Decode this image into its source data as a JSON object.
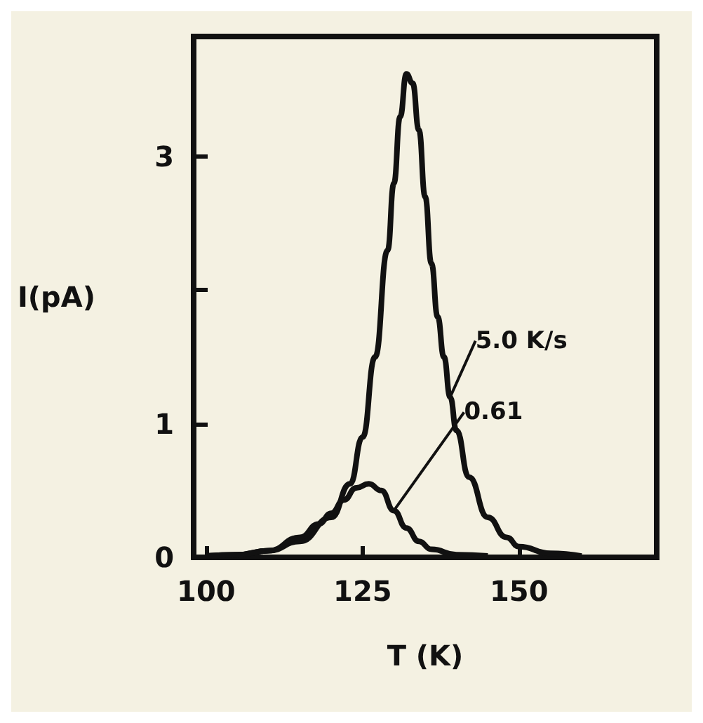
{
  "chart_data": {
    "type": "line",
    "xlabel": "T (K)",
    "ylabel": "I(pA)",
    "xlim": [
      98,
      172
    ],
    "xticks": [
      100,
      125,
      150
    ],
    "ylim": [
      0,
      3.9
    ],
    "yticks": [
      0,
      1,
      {
        "value": 2,
        "label": null
      },
      3
    ],
    "grid": false,
    "marker": "none",
    "line_style": "solid",
    "series": [
      {
        "color": "#111111",
        "x": [
          100,
          105,
          110,
          115,
          120,
          123,
          125,
          127,
          129,
          130,
          131,
          132,
          133,
          134,
          135,
          136,
          137,
          138,
          139,
          140,
          142,
          145,
          148,
          150,
          155,
          160
        ],
        "values": [
          0.01,
          0.02,
          0.05,
          0.12,
          0.3,
          0.55,
          0.9,
          1.5,
          2.3,
          2.8,
          3.3,
          3.62,
          3.55,
          3.2,
          2.7,
          2.2,
          1.8,
          1.5,
          1.2,
          0.95,
          0.6,
          0.3,
          0.15,
          0.08,
          0.03,
          0.01
        ]
      },
      {
        "color": "#111111",
        "x": [
          100,
          105,
          110,
          115,
          118,
          120,
          122,
          124,
          126,
          128,
          130,
          132,
          134,
          136,
          140,
          145
        ],
        "values": [
          0.01,
          0.02,
          0.05,
          0.15,
          0.25,
          0.33,
          0.43,
          0.52,
          0.55,
          0.5,
          0.35,
          0.22,
          0.12,
          0.06,
          0.02,
          0.01
        ]
      }
    ],
    "annotations": [
      {
        "text": "5.0 K/s",
        "x": 139,
        "y": 1.2
      },
      {
        "text": "0.61",
        "x": 130,
        "y": 0.35
      }
    ]
  }
}
